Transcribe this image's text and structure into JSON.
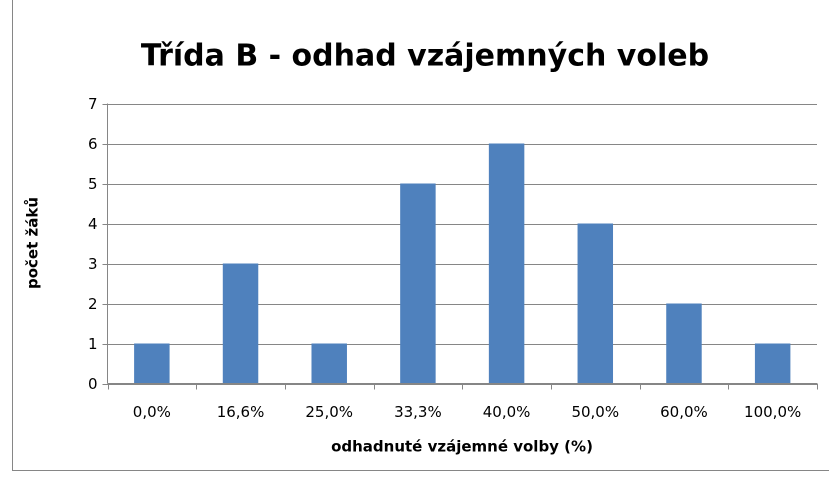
{
  "chart_data": {
    "type": "bar",
    "title": "Třída B - odhad vzájemných voleb",
    "x_label": "odhadnuté vzájemné volby (%)",
    "y_label": "počet žáků",
    "categories": [
      "0,0%",
      "16,6%",
      "25,0%",
      "33,3%",
      "40,0%",
      "50,0%",
      "60,0%",
      "100,0%"
    ],
    "values": [
      1,
      3,
      1,
      5,
      6,
      4,
      2,
      1
    ],
    "color": "#4f81bd",
    "ylim": [
      0,
      7
    ],
    "yticks": [
      0,
      1,
      2,
      3,
      4,
      5,
      6,
      7
    ],
    "grid": true
  }
}
